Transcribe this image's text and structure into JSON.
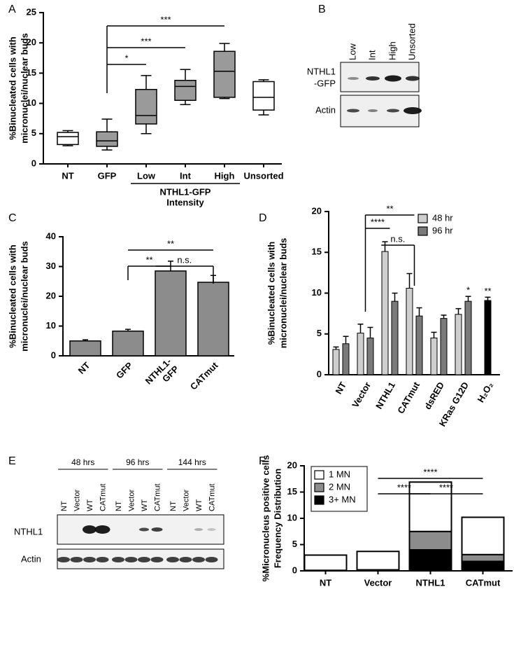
{
  "chart_data": [
    {
      "label": "A",
      "type": "box",
      "ylabel": "%Binucleated cells with\nmicronuclei/nuclear buds",
      "categories": [
        "NT",
        "GFP",
        "Low",
        "Int",
        "High",
        "Unsorted"
      ],
      "group_label": "NTHL1-GFP\nIntensity",
      "min": [
        3.0,
        2.3,
        5.0,
        9.8,
        10.8,
        8.1
      ],
      "q1": [
        3.2,
        2.9,
        6.6,
        10.5,
        11.0,
        8.9
      ],
      "median": [
        4.5,
        3.8,
        8.0,
        12.8,
        15.3,
        11.0
      ],
      "q3": [
        5.2,
        5.3,
        12.3,
        13.8,
        18.6,
        13.6
      ],
      "max": [
        5.5,
        7.4,
        14.6,
        15.6,
        19.9,
        13.9
      ],
      "colors": [
        "#ffffff",
        "#9a9a9a",
        "#9a9a9a",
        "#9a9a9a",
        "#9a9a9a",
        "#ffffff"
      ],
      "ylim": [
        0,
        25
      ],
      "yticks": [
        0,
        5,
        10,
        15,
        20,
        25
      ],
      "annotations": [
        "*",
        "***",
        "***"
      ]
    },
    {
      "label": "C",
      "type": "bar",
      "ylabel": "%Binucleated cells with\nmicronuclei/nuclear buds",
      "categories": [
        "NT",
        "GFP",
        "NTHL1-\nGFP",
        "CATmut"
      ],
      "values": [
        5.0,
        8.3,
        28.5,
        24.7
      ],
      "errors": [
        0.4,
        0.6,
        3.3,
        2.3
      ],
      "color": "#8c8c8c",
      "ylim": [
        0,
        40
      ],
      "yticks": [
        0,
        10,
        20,
        30,
        40
      ],
      "annotations": [
        "**",
        "**",
        "n.s."
      ]
    },
    {
      "label": "D",
      "type": "bar",
      "ylabel": "%Binucleated cells with\nmicronuclei/nuclear buds",
      "categories": [
        "NT",
        "Vector",
        "NTHL1",
        "CATmut",
        "dsRED",
        "KRas G12D",
        "H₂O₂"
      ],
      "series": [
        {
          "name": "48 hr",
          "color": "#cfcfcf",
          "values": [
            3.1,
            5.1,
            15.1,
            10.6,
            4.5,
            7.4,
            null
          ],
          "errors": [
            0.3,
            1.1,
            1.2,
            1.8,
            0.7,
            0.7,
            null
          ]
        },
        {
          "name": "96 hr",
          "color": "#7a7a7a",
          "colors": [
            "#7a7a7a",
            "#7a7a7a",
            "#7a7a7a",
            "#7a7a7a",
            "#7a7a7a",
            "#7a7a7a",
            "#000000"
          ],
          "values": [
            3.8,
            4.5,
            9.0,
            7.2,
            6.9,
            9.0,
            9.1
          ],
          "errors": [
            0.9,
            1.3,
            1.0,
            1.0,
            0.4,
            0.6,
            0.4
          ]
        }
      ],
      "ylim": [
        0,
        20
      ],
      "yticks": [
        0,
        5,
        10,
        15,
        20
      ],
      "annotations": [
        "**",
        "****",
        "n.s.",
        "*",
        "**"
      ]
    },
    {
      "label": "F",
      "type": "stacked_bar",
      "ylabel": "%Micronucleus positive cells\nFrequency Distribution",
      "categories": [
        "NT",
        "Vector",
        "NTHL1",
        "CATmut"
      ],
      "series": [
        {
          "name": "1 MN",
          "color": "#ffffff",
          "values": [
            2.9,
            3.5,
            9.4,
            7.1
          ]
        },
        {
          "name": "2 MN",
          "color": "#8c8c8c",
          "values": [
            0.1,
            0.2,
            3.5,
            1.3
          ]
        },
        {
          "name": "3+ MN",
          "color": "#000000",
          "values": [
            0.0,
            0.0,
            4.0,
            1.8
          ]
        }
      ],
      "ylim": [
        0,
        20
      ],
      "yticks": [
        0,
        5,
        10,
        15,
        20
      ],
      "annotations": [
        "****",
        "****",
        "****"
      ]
    }
  ],
  "blots": [
    {
      "label": "B",
      "lanes": [
        "Low",
        "Int",
        "High",
        "Unsorted"
      ],
      "rows": [
        "NTHL1\n-GFP",
        "Actin"
      ]
    },
    {
      "label": "E",
      "groups": [
        "48 hrs",
        "96 hrs",
        "144 hrs"
      ],
      "lanes": [
        "NT",
        "Vector",
        "WT",
        "CATmut",
        "NT",
        "Vector",
        "WT",
        "CATmut",
        "NT",
        "Vector",
        "WT",
        "CATmut"
      ],
      "rows": [
        "NTHL1",
        "Actin"
      ]
    }
  ]
}
